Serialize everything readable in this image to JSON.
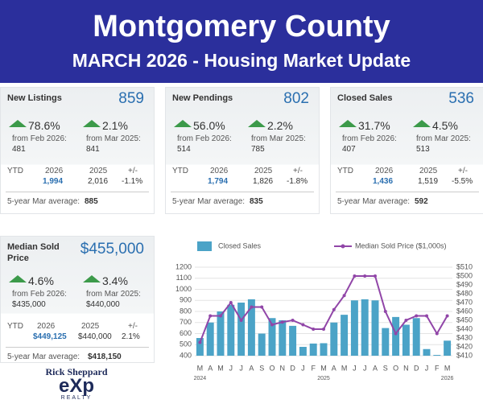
{
  "header": {
    "title": "Montgomery County",
    "subtitle": "MARCH 2026 - Housing Market Update"
  },
  "cards": [
    {
      "title": "New Listings",
      "value": "859",
      "changes": [
        {
          "pct": "78.6%",
          "label": "from Feb 2026:",
          "prev": "481"
        },
        {
          "pct": "2.1%",
          "label": "from Mar 2025:",
          "prev": "841"
        }
      ],
      "ytd": {
        "label": "YTD",
        "year1": "2026",
        "year2": "2025",
        "diff_label": "+/-",
        "v1": "1,994",
        "v2": "2,016",
        "diff": "-1.1%"
      },
      "avg_label": "5-year Mar average:",
      "avg": "885"
    },
    {
      "title": "New Pendings",
      "value": "802",
      "changes": [
        {
          "pct": "56.0%",
          "label": "from Feb 2026:",
          "prev": "514"
        },
        {
          "pct": "2.2%",
          "label": "from Mar 2025:",
          "prev": "785"
        }
      ],
      "ytd": {
        "label": "YTD",
        "year1": "2026",
        "year2": "2025",
        "diff_label": "+/-",
        "v1": "1,794",
        "v2": "1,826",
        "diff": "-1.8%"
      },
      "avg_label": "5-year Mar average:",
      "avg": "835"
    },
    {
      "title": "Closed Sales",
      "value": "536",
      "changes": [
        {
          "pct": "31.7%",
          "label": "from Feb 2026:",
          "prev": "407"
        },
        {
          "pct": "4.5%",
          "label": "from Mar 2025:",
          "prev": "513"
        }
      ],
      "ytd": {
        "label": "YTD",
        "year1": "2026",
        "year2": "2025",
        "diff_label": "+/-",
        "v1": "1,436",
        "v2": "1,519",
        "diff": "-5.5%"
      },
      "avg_label": "5-year Mar average:",
      "avg": "592"
    },
    {
      "title": "Median Sold Price",
      "value": "$455,000",
      "changes": [
        {
          "pct": "4.6%",
          "label": "from Feb 2026:",
          "prev": "$435,000"
        },
        {
          "pct": "3.4%",
          "label": "from Mar 2025:",
          "prev": "$440,000"
        }
      ],
      "ytd": {
        "label": "YTD",
        "year1": "2026",
        "year2": "2025",
        "diff_label": "+/-",
        "v1": "$449,125",
        "v2": "$440,000",
        "diff": "2.1%"
      },
      "avg_label": "5-year Mar average:",
      "avg": "$418,150"
    }
  ],
  "chart_data": {
    "type": "bar_line",
    "categories": [
      "M",
      "A",
      "M",
      "J",
      "J",
      "A",
      "S",
      "O",
      "N",
      "D",
      "J",
      "F",
      "M",
      "A",
      "M",
      "J",
      "J",
      "A",
      "S",
      "O",
      "N",
      "D",
      "J",
      "F",
      "M"
    ],
    "year_labels": [
      "2024",
      "2025",
      "2026"
    ],
    "series": [
      {
        "name": "Closed Sales",
        "type": "bar",
        "color": "#4ba3c7",
        "values": [
          560,
          700,
          800,
          860,
          880,
          910,
          600,
          740,
          720,
          670,
          480,
          510,
          513,
          700,
          770,
          900,
          910,
          900,
          650,
          750,
          680,
          740,
          460,
          407,
          536
        ]
      },
      {
        "name": "Median Sold Price ($1,000s)",
        "type": "line",
        "axis": "y2",
        "color": "#9146a8",
        "values": [
          425,
          455,
          455,
          470,
          450,
          465,
          465,
          445,
          448,
          450,
          445,
          440,
          440,
          462,
          478,
          500,
          500,
          500,
          460,
          435,
          450,
          455,
          455,
          435,
          455
        ]
      }
    ],
    "ylim": [
      400,
      1200
    ],
    "yticks": [
      400,
      500,
      600,
      700,
      800,
      900,
      1000,
      1100,
      1200
    ],
    "y2lim": [
      410,
      510
    ],
    "y2ticks": [
      {
        "value": 410,
        "label": "$410"
      },
      {
        "value": 420,
        "label": "$420"
      },
      {
        "value": 430,
        "label": "$430"
      },
      {
        "value": 440,
        "label": "$440"
      },
      {
        "value": 450,
        "label": "$450"
      },
      {
        "value": 460,
        "label": "$460"
      },
      {
        "value": 470,
        "label": "$470"
      },
      {
        "value": 480,
        "label": "$480"
      },
      {
        "value": 490,
        "label": "$490"
      },
      {
        "value": 500,
        "label": "$500"
      },
      {
        "value": 510,
        "label": "$510"
      }
    ],
    "grid": true
  },
  "branding": {
    "name": "Rick Sheppard",
    "logo": "eXp",
    "sub": "REALTY"
  }
}
